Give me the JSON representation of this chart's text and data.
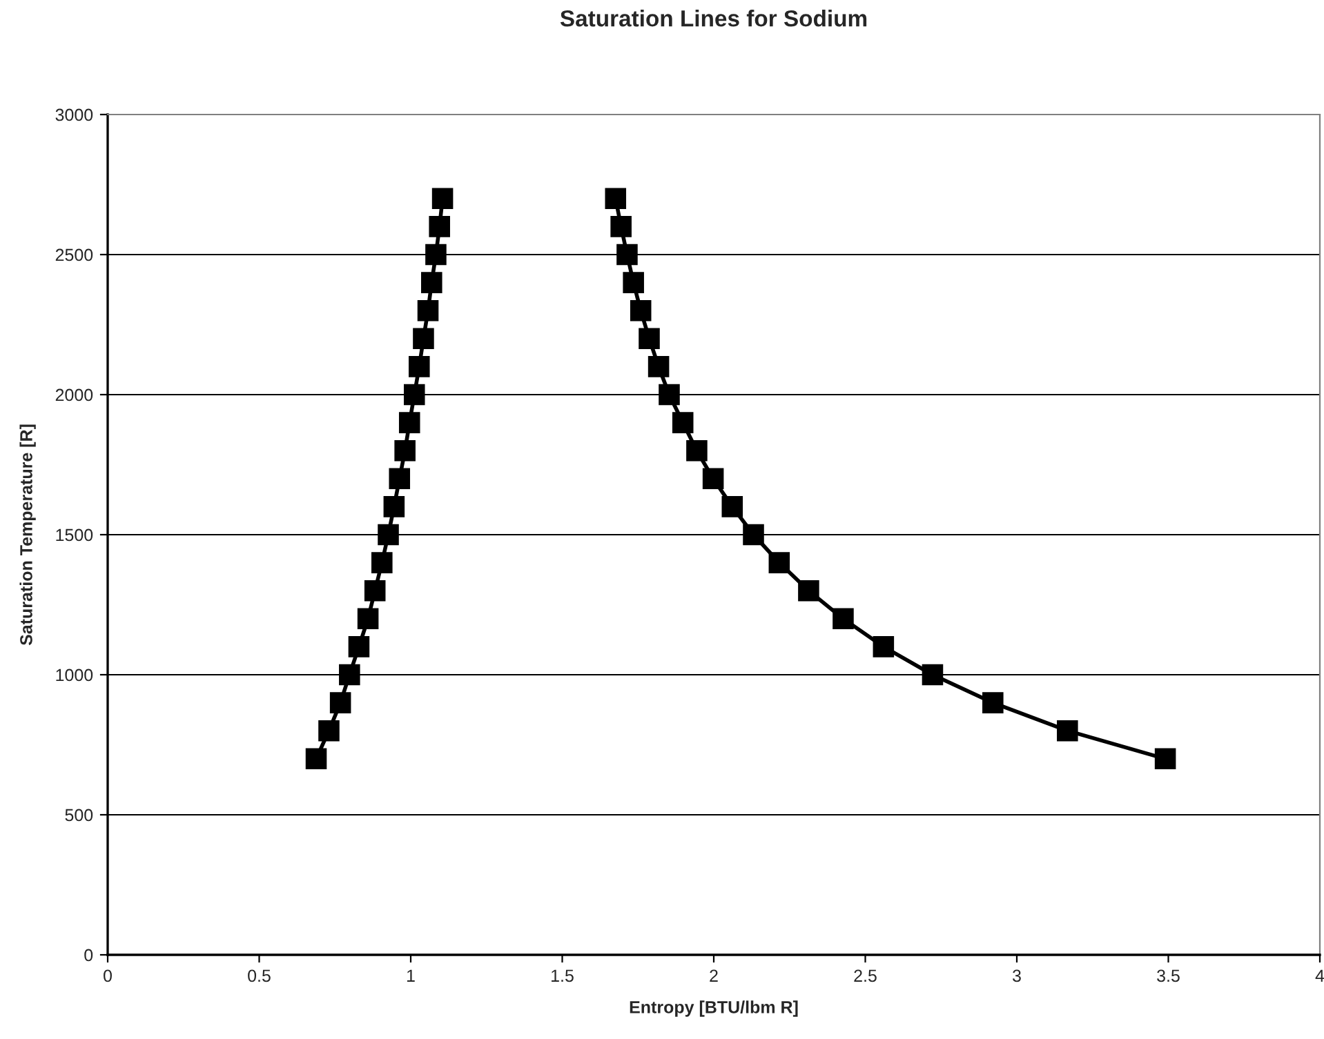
{
  "chart_data": {
    "type": "line",
    "title": "Saturation Lines for Sodium",
    "xlabel": "Entropy [BTU/lbm R]",
    "ylabel": "Saturation Temperature [R]",
    "xlim": [
      0,
      4
    ],
    "xticks": [
      0,
      0.5,
      1,
      1.5,
      2,
      2.5,
      3,
      3.5,
      4
    ],
    "ylim": [
      0,
      3000
    ],
    "yticks": [
      0,
      500,
      1000,
      1500,
      2000,
      2500,
      3000
    ],
    "grid": "y",
    "legend": false,
    "marker": "square",
    "line_style": "solid",
    "series": [
      {
        "color": "#000000",
        "x": [
          0.688,
          0.73,
          0.768,
          0.798,
          0.829,
          0.859,
          0.882,
          0.905,
          0.926,
          0.945,
          0.963,
          0.981,
          0.996,
          1.012,
          1.028,
          1.042,
          1.057,
          1.069,
          1.083,
          1.095,
          1.105
        ],
        "values": [
          700,
          800,
          900,
          1000,
          1100,
          1200,
          1300,
          1400,
          1500,
          1600,
          1700,
          1800,
          1900,
          2000,
          2100,
          2200,
          2300,
          2400,
          2500,
          2600,
          2700
        ]
      },
      {
        "color": "#000000",
        "x": [
          3.49,
          3.167,
          2.921,
          2.722,
          2.56,
          2.427,
          2.313,
          2.216,
          2.131,
          2.061,
          1.998,
          1.944,
          1.898,
          1.853,
          1.818,
          1.787,
          1.759,
          1.735,
          1.714,
          1.694,
          1.676
        ],
        "values": [
          700,
          800,
          900,
          1000,
          1100,
          1200,
          1300,
          1400,
          1500,
          1600,
          1700,
          1800,
          1900,
          2000,
          2100,
          2200,
          2300,
          2400,
          2500,
          2600,
          2700
        ]
      }
    ]
  }
}
